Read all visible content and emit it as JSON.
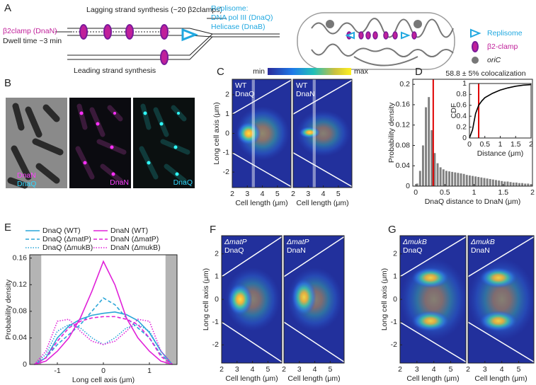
{
  "panel_a": {
    "letter": "A",
    "lagging": "Lagging strand synthesis (~20 β2clamps)",
    "leading": "Leading strand synthesis",
    "clamp": "β2clamp (DnaN)",
    "dwell": "Dwell time ~3 min",
    "replisome": [
      "Replisome:",
      "DNA pol III (DnaQ)",
      "Helicase (DnaB)"
    ],
    "legend": [
      "Replisome",
      "β2-clamp",
      "oriC"
    ]
  },
  "panel_b": {
    "letter": "B",
    "labels": [
      "DnaN",
      "DnaQ",
      "DnaN",
      "DnaQ"
    ]
  },
  "chart_data": [
    {
      "type": "histogram",
      "panel": "D",
      "title": "58.8 ± 5% colocalization",
      "xlabel": "DnaQ distance to DnaN (μm)",
      "ylabel": "Probability density",
      "color": "#808080",
      "marker_x": 0.3,
      "marker_color": "#e00000",
      "bins": [
        0,
        0.05,
        0.1,
        0.15,
        0.2,
        0.25,
        0.3,
        0.35,
        0.4,
        0.45,
        0.5,
        0.55,
        0.6,
        0.65,
        0.7,
        0.75,
        0.8,
        0.85,
        0.9,
        0.95,
        1,
        1.05,
        1.1,
        1.15,
        1.2,
        1.25,
        1.3,
        1.35,
        1.4,
        1.45,
        1.5,
        1.55,
        1.6,
        1.65,
        1.7,
        1.75,
        1.8,
        1.85,
        1.9,
        1.95,
        2
      ],
      "values": [
        0.005,
        0.03,
        0.08,
        0.155,
        0.175,
        0.11,
        0.065,
        0.045,
        0.037,
        0.033,
        0.03,
        0.029,
        0.028,
        0.027,
        0.026,
        0.025,
        0.024,
        0.022,
        0.021,
        0.02,
        0.019,
        0.018,
        0.017,
        0.016,
        0.015,
        0.014,
        0.013,
        0.012,
        0.011,
        0.01,
        0.009,
        0.009,
        0.008,
        0.007,
        0.007,
        0.006,
        0.006,
        0.005,
        0.005,
        0.004
      ],
      "xlim": [
        -0.05,
        2
      ],
      "ylim": [
        0,
        0.21
      ],
      "xticks": [
        0,
        0.5,
        1,
        1.5,
        2
      ],
      "yticks": [
        0,
        0.04,
        0.08,
        0.12,
        0.16,
        0.2
      ]
    },
    {
      "type": "line",
      "panel": "D-inset",
      "xlabel": "Distance (μm)",
      "ylabel": "CDF",
      "color": "#000000",
      "marker_x": 0.3,
      "marker_color": "#e00000",
      "x": [
        0,
        0.1,
        0.2,
        0.3,
        0.4,
        0.5,
        0.75,
        1,
        1.25,
        1.5,
        1.75,
        2
      ],
      "values": [
        0,
        0.15,
        0.45,
        0.6,
        0.68,
        0.74,
        0.82,
        0.88,
        0.92,
        0.95,
        0.97,
        0.98
      ],
      "xlim": [
        0,
        2
      ],
      "ylim": [
        0,
        1
      ],
      "xticks": [
        0,
        0.5,
        1,
        1.5,
        2
      ],
      "yticks": [
        0,
        0.2,
        0.4,
        0.6,
        0.8,
        1
      ]
    },
    {
      "type": "line",
      "panel": "E",
      "xlabel": "Long cell axis (μm)",
      "ylabel": "Probability density",
      "xlim": [
        -1.6,
        1.6
      ],
      "ylim": [
        0,
        0.165
      ],
      "xticks": [
        -1,
        0,
        1
      ],
      "yticks": [
        0,
        0.04,
        0.08,
        0.12,
        0.16
      ],
      "excluded_ranges": [
        [
          -1.6,
          -1.35
        ],
        [
          1.35,
          1.6
        ]
      ],
      "x": [
        -1.5,
        -1.25,
        -1,
        -0.75,
        -0.5,
        -0.25,
        0,
        0.25,
        0.5,
        0.75,
        1,
        1.25,
        1.5
      ],
      "series": [
        {
          "name": "DnaQ (WT)",
          "color": "#2aa6d8",
          "dash": "solid",
          "values": [
            0,
            0.01,
            0.04,
            0.058,
            0.068,
            0.074,
            0.077,
            0.079,
            0.075,
            0.066,
            0.048,
            0.02,
            0
          ]
        },
        {
          "name": "DnaQ (ΔmatP)",
          "color": "#2aa6d8",
          "dash": "dashed",
          "values": [
            0,
            0.01,
            0.03,
            0.045,
            0.06,
            0.08,
            0.1,
            0.09,
            0.07,
            0.055,
            0.04,
            0.015,
            0
          ]
        },
        {
          "name": "DnaQ (ΔmukB)",
          "color": "#2aa6d8",
          "dash": "dotted",
          "values": [
            0,
            0.015,
            0.05,
            0.06,
            0.055,
            0.04,
            0.03,
            0.04,
            0.055,
            0.06,
            0.05,
            0.02,
            0
          ]
        },
        {
          "name": "DnaN (WT)",
          "color": "#e020d8",
          "dash": "solid",
          "values": [
            0,
            0.005,
            0.02,
            0.04,
            0.07,
            0.11,
            0.155,
            0.12,
            0.07,
            0.04,
            0.02,
            0.005,
            0
          ]
        },
        {
          "name": "DnaN (ΔmatP)",
          "color": "#e020d8",
          "dash": "dashed",
          "values": [
            0,
            0.01,
            0.035,
            0.055,
            0.065,
            0.07,
            0.072,
            0.072,
            0.068,
            0.06,
            0.04,
            0.012,
            0
          ]
        },
        {
          "name": "DnaN (ΔmukB)",
          "color": "#e020d8",
          "dash": "dotted",
          "values": [
            0,
            0.02,
            0.065,
            0.068,
            0.05,
            0.035,
            0.03,
            0.035,
            0.05,
            0.068,
            0.065,
            0.02,
            0
          ]
        }
      ]
    },
    {
      "type": "heatmap",
      "panel": "C",
      "colorbar": [
        "min",
        "max"
      ],
      "highlight_x": [
        3.3,
        3.5
      ],
      "subplots": [
        [
          "WT",
          "DnaQ"
        ],
        [
          "WT",
          "DnaN"
        ]
      ],
      "xlabel": "Cell length (μm)",
      "ylabel": "Long cell axis (μm)",
      "xlim": [
        2,
        5.9
      ],
      "ylim": [
        -2.8,
        2.8
      ],
      "xticks": [
        2,
        3,
        4,
        5
      ],
      "yticks": [
        -2,
        -1,
        0,
        1,
        2
      ]
    },
    {
      "type": "heatmap",
      "panel": "F",
      "subplots": [
        [
          "ΔmatP",
          "DnaQ"
        ],
        [
          "ΔmatP",
          "DnaN"
        ]
      ],
      "xlabel": "Cell length (μm)",
      "ylabel": "Long cell axis (μm)",
      "xlim": [
        2,
        5.9
      ],
      "ylim": [
        -2.8,
        2.8
      ],
      "xticks": [
        2,
        3,
        4,
        5
      ],
      "yticks": [
        -2,
        -1,
        0,
        1,
        2
      ]
    },
    {
      "type": "heatmap",
      "panel": "G",
      "subplots": [
        [
          "ΔmukB",
          "DnaQ"
        ],
        [
          "ΔmukB",
          "DnaN"
        ]
      ],
      "xlabel": "Cell length (μm)",
      "ylabel": "Long cell axis (μm)",
      "xlim": [
        2,
        5.9
      ],
      "ylim": [
        -2.8,
        2.8
      ],
      "xticks": [
        2,
        3,
        4,
        5
      ],
      "yticks": [
        -2,
        -1,
        0,
        1,
        2
      ]
    }
  ]
}
